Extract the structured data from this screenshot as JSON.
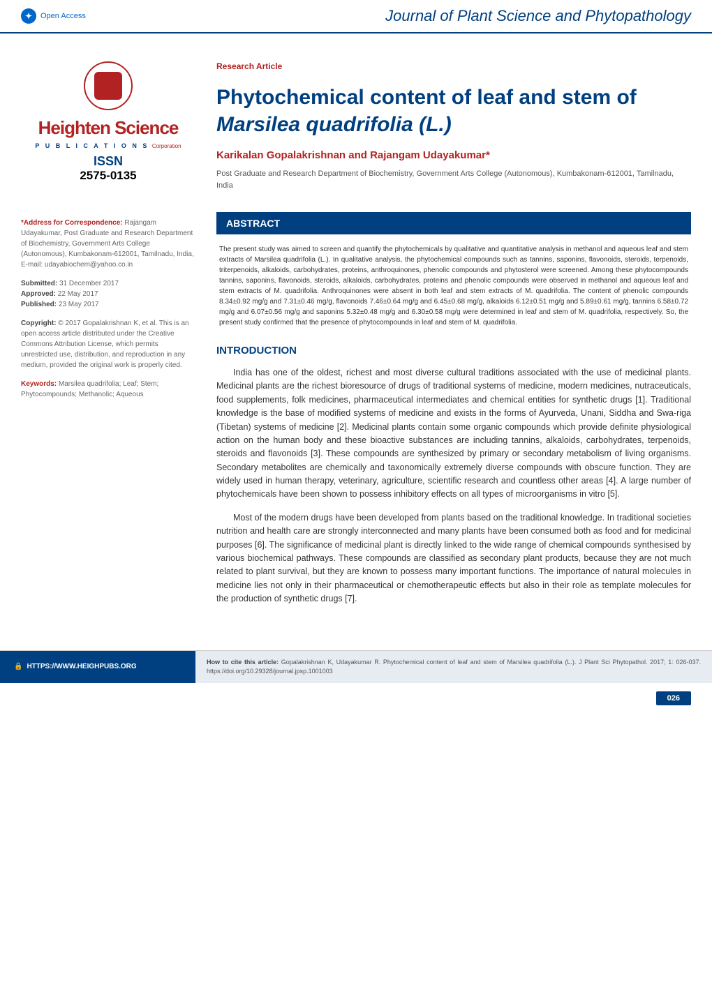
{
  "header": {
    "open_access": "Open Access",
    "journal_title": "Journal of Plant Science and Phytopathology"
  },
  "logo": {
    "name": "Heighten Science",
    "sub": "P U B L I C A T I O N S",
    "corp": "Corporation",
    "issn_label": "ISSN",
    "issn": "2575-0135"
  },
  "meta": {
    "correspondence_label": "*Address for Correspondence:",
    "correspondence": "Rajangam Udayakumar, Post Graduate and Research Department of Biochemistry, Government Arts College (Autonomous), Kumbakonam-612001, Tamilnadu, India, E-mail: udayabiochem@yahoo.co.in",
    "submitted_label": "Submitted:",
    "submitted": "31 December 2017",
    "approved_label": "Approved:",
    "approved": "22 May 2017",
    "published_label": "Published:",
    "published": "23 May 2017",
    "copyright_label": "Copyright:",
    "copyright": "© 2017 Gopalakrishnan K, et al. This is an open access article distributed under the Creative Commons Attribution License, which permits unrestricted use, distribution, and reproduction in any medium, provided the original work is properly cited.",
    "keywords_label": "Keywords:",
    "keywords": "Marsilea quadrifolia; Leaf; Stem; Phytocompounds; Methanolic; Aqueous"
  },
  "article": {
    "type": "Research Article",
    "title_1": "Phytochemical content of leaf and stem of ",
    "title_species": "Marsilea quadrifolia (L.)",
    "authors": "Karikalan Gopalakrishnan and Rajangam Udayakumar*",
    "affiliation": "Post Graduate and Research Department of Biochemistry, Government Arts College (Autonomous), Kumbakonam-612001, Tamilnadu, India"
  },
  "abstract": {
    "header": "ABSTRACT",
    "text": "The present study was aimed to screen and quantify the phytochemicals by qualitative and quantitative analysis in methanol and aqueous leaf and stem extracts of Marsilea quadrifolia (L.). In qualitative analysis, the phytochemical compounds such as tannins, saponins, flavonoids, steroids, terpenoids, triterpenoids, alkaloids, carbohydrates, proteins, anthroquinones, phenolic compounds and phytosterol were screened. Among these phytocompounds tannins, saponins, flavonoids, steroids, alkaloids, carbohydrates, proteins and phenolic compounds were observed in methanol and aqueous leaf and stem extracts of M. quadrifolia. Anthroquinones were absent in both leaf and stem extracts of M. quadrifolia. The content of phenolic compounds 8.34±0.92 mg/g and 7.31±0.46 mg/g, flavonoids 7.46±0.64 mg/g and 6.45±0.68 mg/g, alkaloids 6.12±0.51 mg/g and 5.89±0.61 mg/g, tannins 6.58±0.72 mg/g and 6.07±0.56 mg/g and saponins 5.32±0.48 mg/g and 6.30±0.58 mg/g were determined in leaf and stem of M. quadrifolia, respectively. So, the present study confirmed that the presence of phytocompounds in leaf and stem of M. quadrifolia."
  },
  "introduction": {
    "header": "INTRODUCTION",
    "p1": "India has one of the oldest, richest and most diverse cultural traditions associated with the use of medicinal plants. Medicinal plants are the richest bioresource of drugs of traditional systems of medicine, modern medicines, nutraceuticals, food supplements, folk medicines, pharmaceutical intermediates and chemical entities for synthetic drugs [1]. Traditional knowledge is the base of modified systems of medicine and exists in the forms of Ayurveda, Unani, Siddha and Swa-riga (Tibetan) systems of medicine [2]. Medicinal plants contain some organic compounds which provide definite physiological action on the human body and these bioactive substances are including tannins, alkaloids, carbohydrates, terpenoids, steroids and flavonoids [3]. These compounds are synthesized by primary or secondary metabolism of living organisms. Secondary metabolites are chemically and taxonomically extremely diverse compounds with obscure function. They are widely used in human therapy, veterinary, agriculture, scientific research and countless other areas [4]. A large number of phytochemicals have been shown to possess inhibitory effects on all types of microorganisms in vitro [5].",
    "p2": "Most of the modern drugs have been developed from plants based on the traditional knowledge. In traditional societies nutrition and health care are strongly interconnected and many plants have been consumed both as food and for medicinal purposes [6]. The significance of medicinal plant is directly linked to the wide range of chemical compounds synthesised by various biochemical pathways. These compounds are classified as secondary plant products, because they are not much related to plant survival, but they are known to possess many important functions. The importance of natural molecules in medicine lies not only in their pharmaceutical or chemotherapeutic effects but also in their role as template molecules for the production of synthetic drugs [7]."
  },
  "footer": {
    "url_prefix": "HTTPS://WWW.",
    "url_rest": "HEIGHPUBS.ORG",
    "cite_label": "How to cite this article:",
    "cite_text": "Gopalakrishnan K, Udayakumar R. Phytochemical content of leaf and stem of Marsilea quadrifolia (L.). J Plant Sci Phytopathol. 2017; 1: 026-037. https://doi.org/10.29328/journal.jpsp.1001003",
    "page": "026"
  },
  "colors": {
    "primary_blue": "#004080",
    "accent_red": "#b22222",
    "link_blue": "#0066cc",
    "footer_bg": "#e6ecf2",
    "text_gray": "#666"
  }
}
